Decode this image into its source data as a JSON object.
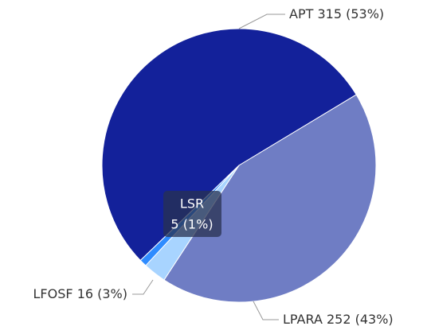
{
  "chart_data": {
    "type": "pie",
    "categories": [
      "APT",
      "LPARA",
      "LFOSF",
      "LSR"
    ],
    "values": [
      315,
      252,
      16,
      5
    ],
    "value_labels": [
      "315 (53%)",
      "252 (43%)",
      "16 (3%)",
      "5 (1%)"
    ],
    "colors": [
      "#13219a",
      "#6f7dc4",
      "#a8d4ff",
      "#2f8cff"
    ]
  }
}
